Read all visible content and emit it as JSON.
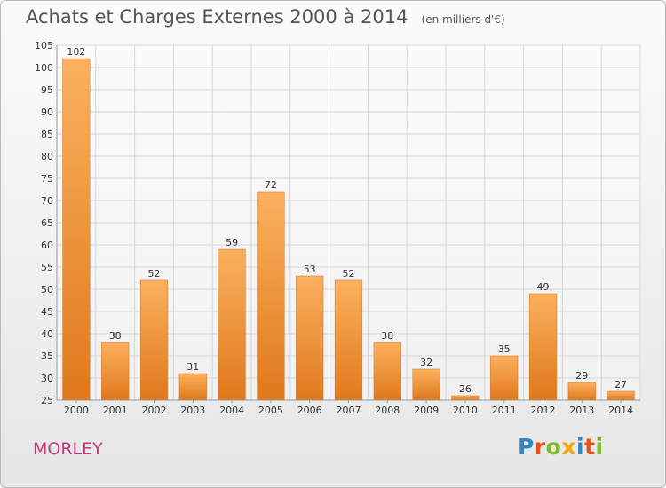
{
  "header": {
    "title": "Achats et Charges Externes 2000 à 2014",
    "subtitle": "(en milliers d'€)"
  },
  "location": "MORLEY",
  "logo": {
    "text": "Proxiti",
    "letter_colors": [
      "#2f87c8",
      "#e94e1b",
      "#7db928",
      "#f7a600",
      "#2f87c8",
      "#e94e1b",
      "#7db928"
    ]
  },
  "colors": {
    "bar_light": "#fbb15e",
    "bar_dark": "#e0781c",
    "grid": "#d6d6d6",
    "location": "#c8357e"
  },
  "chart_data": {
    "type": "bar",
    "title": "Achats et Charges Externes 2000 à 2014",
    "subtitle": "(en milliers d'€)",
    "xlabel": "",
    "ylabel": "",
    "categories": [
      "2000",
      "2001",
      "2002",
      "2003",
      "2004",
      "2005",
      "2006",
      "2007",
      "2008",
      "2009",
      "2010",
      "2011",
      "2012",
      "2013",
      "2014"
    ],
    "values": [
      102,
      38,
      52,
      31,
      59,
      72,
      53,
      52,
      38,
      32,
      26,
      35,
      49,
      29,
      27
    ],
    "ylim": [
      25,
      105
    ],
    "yticks": [
      25,
      30,
      35,
      40,
      45,
      50,
      55,
      60,
      65,
      70,
      75,
      80,
      85,
      90,
      95,
      100,
      105
    ],
    "grid": true,
    "legend": "none"
  }
}
